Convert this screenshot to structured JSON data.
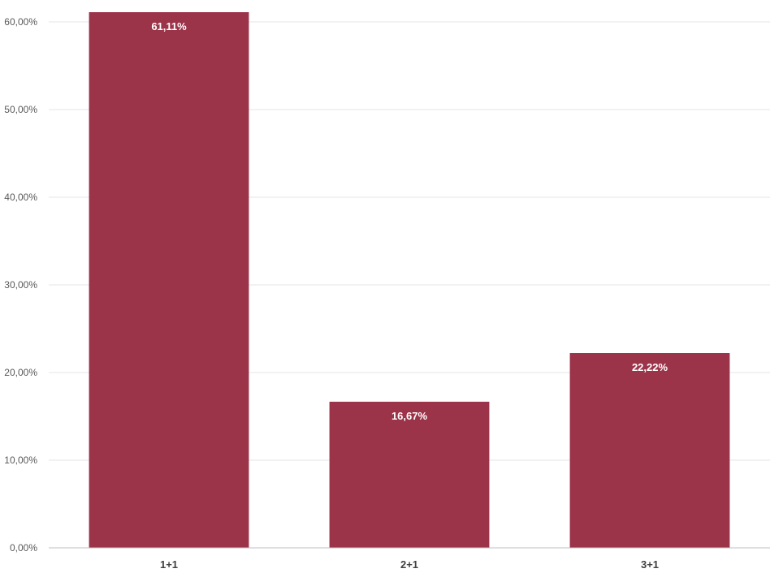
{
  "chart_data": {
    "type": "bar",
    "categories": [
      "1+1",
      "2+1",
      "3+1"
    ],
    "values": [
      61.11,
      16.67,
      22.22
    ],
    "data_labels": [
      "61,11%",
      "16,67%",
      "22,22%"
    ],
    "ylim": [
      0,
      60
    ],
    "yticks": [
      0,
      10,
      20,
      30,
      40,
      50,
      60
    ],
    "ytick_labels": [
      "0,00%",
      "10,00%",
      "20,00%",
      "30,00%",
      "40,00%",
      "50,00%",
      "60,00%"
    ],
    "grid": true,
    "bar_color": "#9b3349",
    "grid_color": "#e6e6e6",
    "axis_color": "#bfbfbf"
  }
}
